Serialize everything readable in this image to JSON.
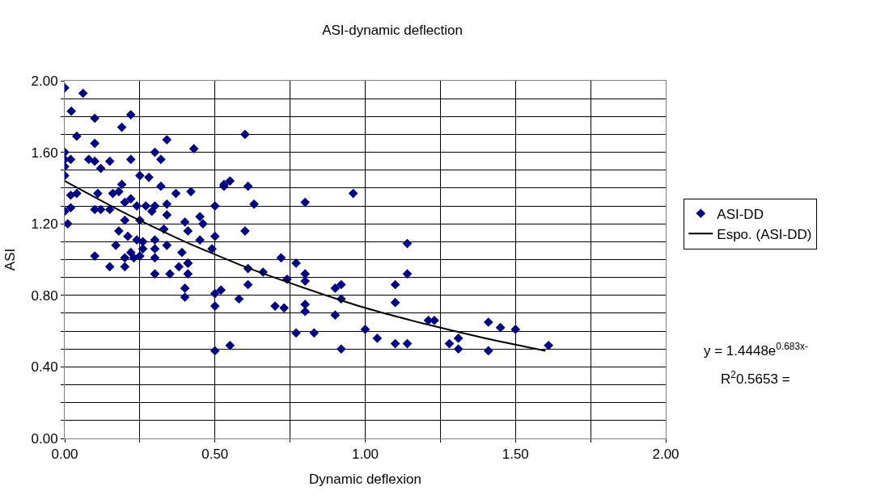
{
  "chart_data": {
    "type": "scatter",
    "title": "ASI-dynamic deflection",
    "xlabel": "Dynamic deflexion",
    "ylabel": "ASI",
    "xlim": [
      0,
      2
    ],
    "ylim": [
      0,
      2
    ],
    "xticks": [
      {
        "value": 0,
        "label": "0.00"
      },
      {
        "value": 0.25,
        "label": null
      },
      {
        "value": 0.5,
        "label": "0.50"
      },
      {
        "value": 0.75,
        "label": null
      },
      {
        "value": 1,
        "label": "1.00"
      },
      {
        "value": 1.25,
        "label": null
      },
      {
        "value": 1.5,
        "label": "1.50"
      },
      {
        "value": 1.75,
        "label": null
      },
      {
        "value": 2,
        "label": "2.00"
      }
    ],
    "yticks": [
      {
        "value": 0,
        "label": "0.00"
      },
      {
        "value": 0.1,
        "label": null
      },
      {
        "value": 0.2,
        "label": null
      },
      {
        "value": 0.3,
        "label": null
      },
      {
        "value": 0.4,
        "label": "0.40"
      },
      {
        "value": 0.5,
        "label": null
      },
      {
        "value": 0.6,
        "label": null
      },
      {
        "value": 0.7,
        "label": null
      },
      {
        "value": 0.8,
        "label": "0.80"
      },
      {
        "value": 0.9,
        "label": null
      },
      {
        "value": 1.0,
        "label": null
      },
      {
        "value": 1.1,
        "label": null
      },
      {
        "value": 1.2,
        "label": "1.20"
      },
      {
        "value": 1.3,
        "label": null
      },
      {
        "value": 1.4,
        "label": null
      },
      {
        "value": 1.5,
        "label": null
      },
      {
        "value": 1.6,
        "label": "1.60"
      },
      {
        "value": 1.7,
        "label": null
      },
      {
        "value": 1.8,
        "label": null
      },
      {
        "value": 1.9,
        "label": null
      },
      {
        "value": 2.0,
        "label": "2.00"
      }
    ],
    "grid": true,
    "legend": "right",
    "marker": "diamond",
    "series": [
      {
        "name": "ASI-DD",
        "color": "#000080",
        "x": [
          0,
          0.061,
          0.022,
          0.1,
          0.22,
          0.19,
          0.04,
          0.1,
          0.34,
          0.43,
          0,
          0,
          0.02,
          0.08,
          0.1,
          0.15,
          0.22,
          0.3,
          0.32,
          0,
          0.12,
          0,
          0.25,
          0.28,
          0.32,
          0.53,
          0.19,
          0.04,
          0.02,
          0.11,
          0.16,
          0.18,
          0.37,
          0.42,
          0.22,
          0.2,
          0,
          0.02,
          0.1,
          0.12,
          0.15,
          0.24,
          0.27,
          0.3,
          0.34,
          0.45,
          0.5,
          0.01,
          0.2,
          0.25,
          0.34,
          0.29,
          0.4,
          0.46,
          0.18,
          0.21,
          0.24,
          0.17,
          0.26,
          0.3,
          0.33,
          0.41,
          0.5,
          0.22,
          0.26,
          0.3,
          0.34,
          0.39,
          0.45,
          0.1,
          0.41,
          0.49,
          0.15,
          0.2,
          0.2,
          0.23,
          0.25,
          0.3,
          0.3,
          0.35,
          0.38,
          0.41,
          0.41,
          0.4,
          0.4,
          0.5,
          0.52,
          0.5,
          0.5,
          0.55,
          0.6,
          0.53,
          0.55,
          0.61,
          0.63,
          0.6,
          0.8,
          0.96,
          0.72,
          0.77,
          0.61,
          0.66,
          0.74,
          0.8,
          0.8,
          0.61,
          0.58,
          0.7,
          0.73,
          0.8,
          0.8,
          0.9,
          0.92,
          0.92,
          0.9,
          0.77,
          0.83,
          0.92,
          1.0,
          1.04,
          1.1,
          1.14,
          1.1,
          1.1,
          1.14,
          1.14,
          1.21,
          1.23,
          1.28,
          1.31,
          1.31,
          1.41,
          1.45,
          1.5,
          1.41,
          1.61
        ],
        "values": [
          1.96,
          1.93,
          1.83,
          1.79,
          1.81,
          1.74,
          1.69,
          1.65,
          1.67,
          1.62,
          1.6,
          1.56,
          1.56,
          1.56,
          1.55,
          1.55,
          1.56,
          1.6,
          1.56,
          1.52,
          1.51,
          1.47,
          1.47,
          1.46,
          1.41,
          1.42,
          1.42,
          1.37,
          1.36,
          1.37,
          1.37,
          1.38,
          1.37,
          1.38,
          1.34,
          1.32,
          1.27,
          1.29,
          1.28,
          1.28,
          1.28,
          1.3,
          1.3,
          1.3,
          1.31,
          1.24,
          1.3,
          1.2,
          1.22,
          1.22,
          1.25,
          1.27,
          1.21,
          1.2,
          1.16,
          1.13,
          1.11,
          1.08,
          1.1,
          1.11,
          1.17,
          1.16,
          1.13,
          1.04,
          1.06,
          1.06,
          1.08,
          1.04,
          1.11,
          1.02,
          0.98,
          1.06,
          0.96,
          1.01,
          0.96,
          1.01,
          1.02,
          1.01,
          0.92,
          0.92,
          0.96,
          0.98,
          0.92,
          0.84,
          0.79,
          0.81,
          0.83,
          0.74,
          0.49,
          0.52,
          1.7,
          1.41,
          1.44,
          1.41,
          1.31,
          1.16,
          1.32,
          1.37,
          1.01,
          0.98,
          0.95,
          0.93,
          0.89,
          0.92,
          0.88,
          0.86,
          0.78,
          0.74,
          0.73,
          0.75,
          0.71,
          0.84,
          0.86,
          0.78,
          0.69,
          0.59,
          0.59,
          0.5,
          0.61,
          0.56,
          0.53,
          0.53,
          0.86,
          0.76,
          0.92,
          1.09,
          0.66,
          0.66,
          0.53,
          0.56,
          0.5,
          0.65,
          0.62,
          0.61,
          0.49,
          0.52
        ]
      },
      {
        "name": "Espo. (ASI-DD)",
        "type": "line",
        "color": "#000000",
        "marker": "none",
        "line_style": "solid",
        "x": [
          0,
          0.2,
          0.4,
          0.6,
          0.8,
          1.0,
          1.2,
          1.4,
          1.6
        ],
        "values": [
          1.44,
          1.26,
          1.1,
          0.96,
          0.84,
          0.73,
          0.64,
          0.56,
          0.49
        ]
      }
    ],
    "annotations": [
      "y = 1.4448e$^{0.683x-}$",
      "R$^{2}$0.5653 ="
    ]
  }
}
